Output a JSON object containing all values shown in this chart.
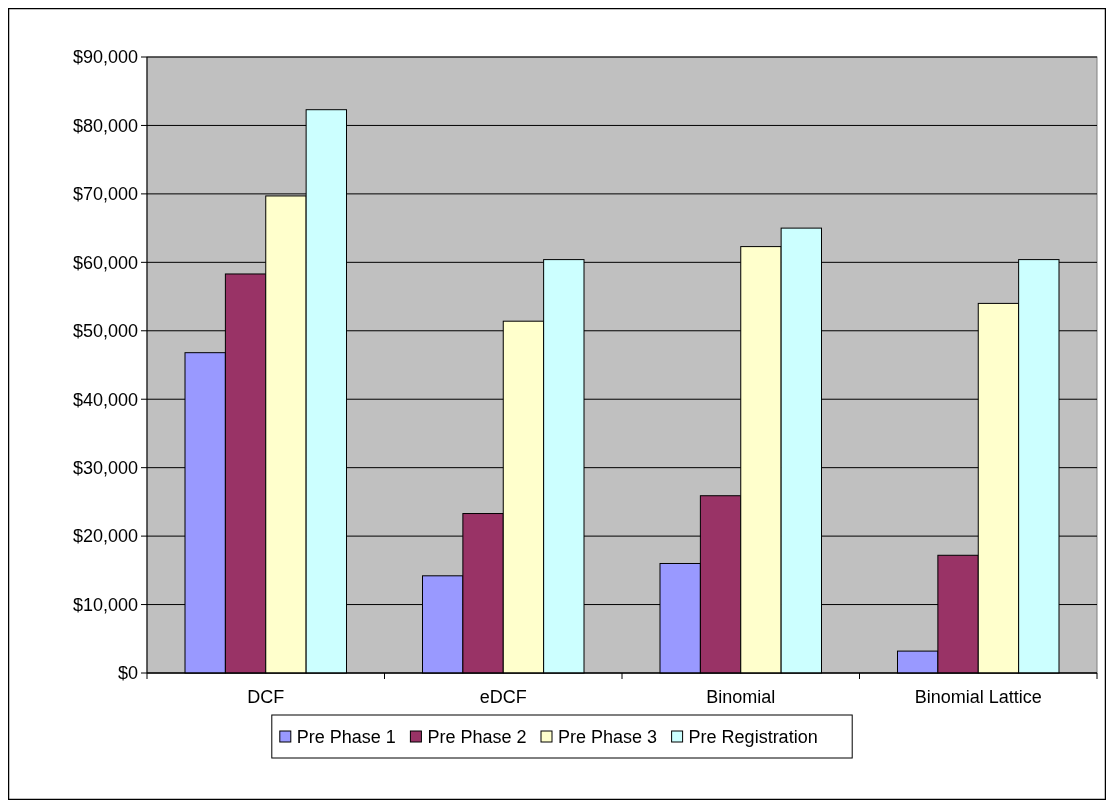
{
  "chart_data": {
    "type": "bar",
    "categories": [
      "DCF",
      "eDCF",
      "Binomial",
      "Binomial Lattice"
    ],
    "series": [
      {
        "name": "Pre Phase 1",
        "color": "#9999ff",
        "values": [
          46800,
          14200,
          16000,
          3200
        ]
      },
      {
        "name": "Pre Phase 2",
        "color": "#993366",
        "values": [
          58300,
          23300,
          25900,
          17200
        ]
      },
      {
        "name": "Pre Phase 3",
        "color": "#ffffcc",
        "values": [
          69700,
          51400,
          62300,
          54000
        ]
      },
      {
        "name": "Pre Registration",
        "color": "#ccffff",
        "values": [
          82300,
          60400,
          65000,
          60400
        ]
      }
    ],
    "ylim": [
      0,
      90000
    ],
    "yticks": [
      {
        "value": 0,
        "label": "$0"
      },
      {
        "value": 10000,
        "label": "$10,000"
      },
      {
        "value": 20000,
        "label": "$20,000"
      },
      {
        "value": 30000,
        "label": "$30,000"
      },
      {
        "value": 40000,
        "label": "$40,000"
      },
      {
        "value": 50000,
        "label": "$50,000"
      },
      {
        "value": 60000,
        "label": "$60,000"
      },
      {
        "value": 70000,
        "label": "$70,000"
      },
      {
        "value": 80000,
        "label": "$80,000"
      },
      {
        "value": 90000,
        "label": "$90,000"
      }
    ],
    "grid": "y",
    "legend": "bottom"
  }
}
